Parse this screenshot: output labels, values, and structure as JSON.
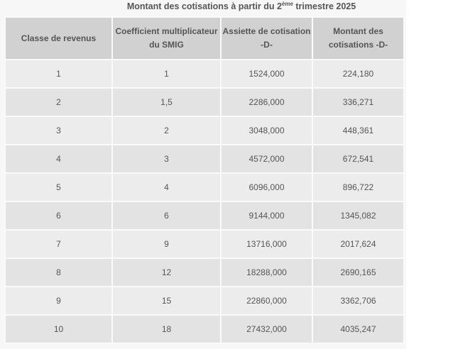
{
  "title": {
    "main": "Montant des cotisations à partir du 2",
    "sup": "ème",
    "rest": " trimestre 2025"
  },
  "table": {
    "headers": [
      "Classe de revenus",
      "Coefficient multiplicateur du SMIG",
      "Assiette  de cotisation -D-",
      "Montant des cotisations -D-"
    ],
    "rows": [
      [
        "1",
        "1",
        "1524,000",
        "224,180"
      ],
      [
        "2",
        "1,5",
        "2286,000",
        "336,271"
      ],
      [
        "3",
        "2",
        "3048,000",
        "448,361"
      ],
      [
        "4",
        "3",
        "4572,000",
        "672,541"
      ],
      [
        "5",
        "4",
        "6096,000",
        "896,722"
      ],
      [
        "6",
        "6",
        "9144,000",
        "1345,082"
      ],
      [
        "7",
        "9",
        "13716,000",
        "2017,624"
      ],
      [
        "8",
        "12",
        "18288,000",
        "2690,165"
      ],
      [
        "9",
        "15",
        "22860,000",
        "3362,706"
      ],
      [
        "10",
        "18",
        "27432,000",
        "4035,247"
      ]
    ]
  }
}
